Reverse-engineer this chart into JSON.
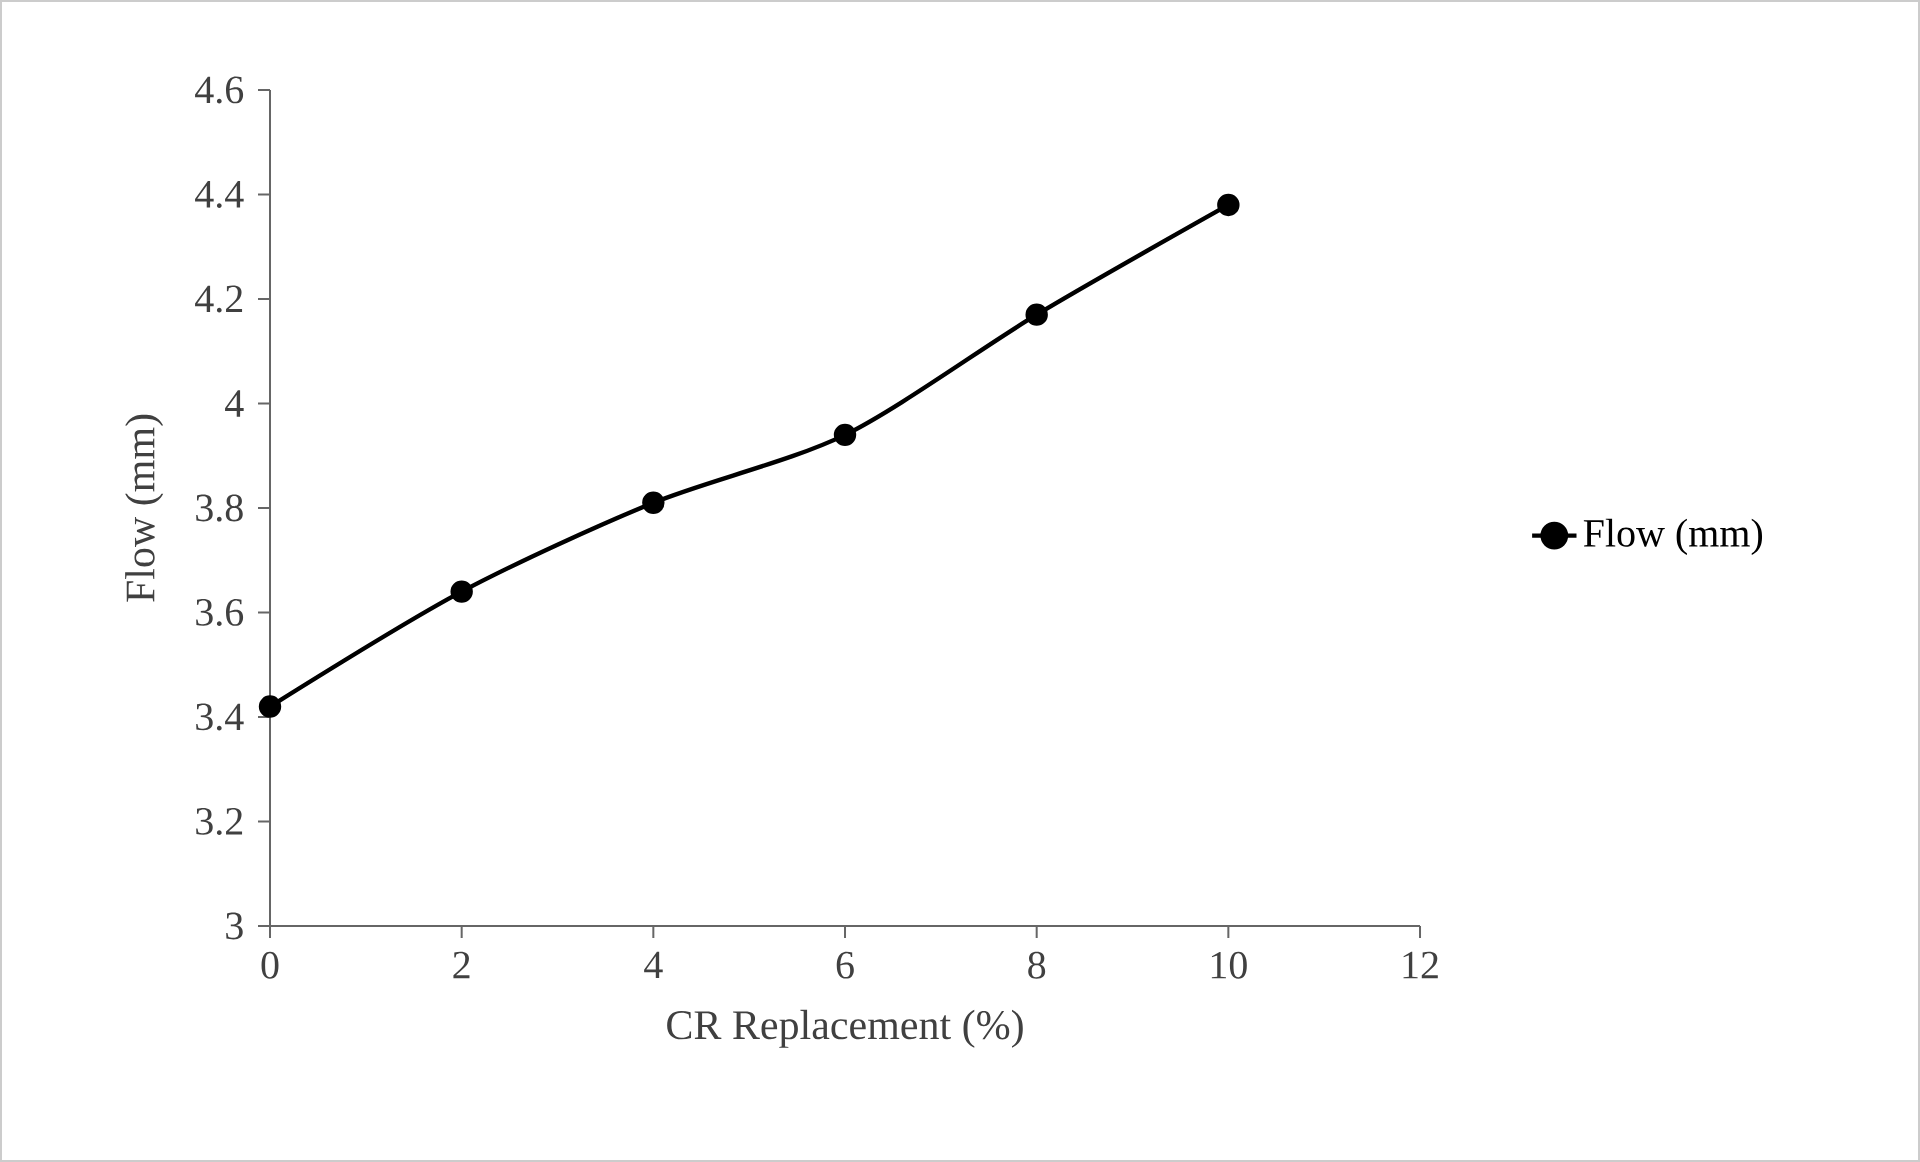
{
  "chart_data": {
    "type": "line",
    "xlabel": "CR Replacement (%)",
    "ylabel": "Flow (mm)",
    "x": [
      0,
      2,
      4,
      6,
      8,
      10
    ],
    "series": [
      {
        "name": "Flow (mm)",
        "color": "#000000",
        "values": [
          3.42,
          3.64,
          3.81,
          3.94,
          4.17,
          4.38
        ]
      }
    ],
    "xlim": [
      0,
      12
    ],
    "xticks": [
      0,
      2,
      4,
      6,
      8,
      10,
      12
    ],
    "ylim": [
      3,
      4.6
    ],
    "yticks": [
      3,
      3.2,
      3.4,
      3.6,
      3.8,
      4,
      4.2,
      4.4,
      4.6
    ],
    "grid": false,
    "legend": "right",
    "marker": "circle",
    "line_style": "solid"
  }
}
